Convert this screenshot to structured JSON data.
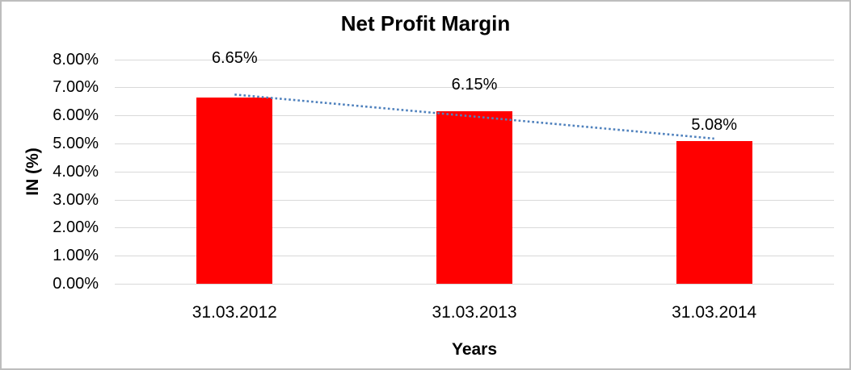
{
  "chart_data": {
    "type": "bar",
    "title": "Net Profit Margin",
    "xlabel": "Years",
    "ylabel": "IN (%)",
    "categories": [
      "31.03.2012",
      "31.03.2013",
      "31.03.2014"
    ],
    "series": [
      {
        "name": "Net Profit Margin",
        "values": [
          6.65,
          6.15,
          5.08
        ]
      }
    ],
    "value_labels": [
      "6.65%",
      "6.15%",
      "5.08%"
    ],
    "y_ticks": [
      "8.00%",
      "7.00%",
      "6.00%",
      "5.00%",
      "4.00%",
      "3.00%",
      "2.00%",
      "1.00%",
      "0.00%"
    ],
    "ylim": [
      0,
      8
    ],
    "y_step": 1,
    "grid": true,
    "legend": "none",
    "trendline": "linear-dotted",
    "colors": {
      "bar": "#FF0000",
      "trendline": "#4F81BD",
      "gridline": "#D9D9D9",
      "text": "#000000",
      "frame_border": "#BDBDBD",
      "background": "#FFFFFF"
    }
  }
}
